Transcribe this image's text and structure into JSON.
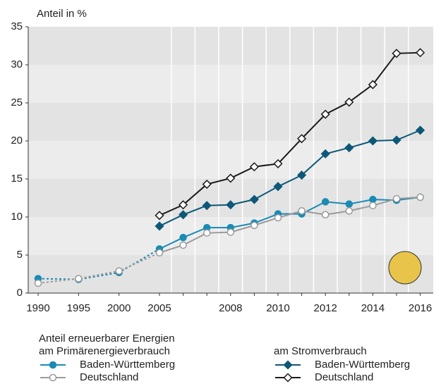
{
  "chart_data": {
    "type": "line",
    "ylabel": "Anteil in %",
    "categories": [
      "1990",
      "1995",
      "2000",
      "2005",
      null,
      null,
      "2008",
      null,
      "2010",
      null,
      "2012",
      null,
      "2014",
      null,
      "2016"
    ],
    "ylim": [
      0,
      35
    ],
    "yticks": [
      0,
      5,
      10,
      15,
      20,
      25,
      30,
      35
    ],
    "legend": {
      "heading": "Anteil erneuerbarer Energien",
      "groups": [
        "am Primärenergieverbrauch",
        "am Stromverbrauch"
      ]
    },
    "series": [
      {
        "name": "Baden-Württemberg",
        "group": 0,
        "color": "#1a8bb4",
        "marker": "circle",
        "filled": true,
        "dashed_until": "2005",
        "values": [
          1.9,
          1.8,
          2.7,
          5.8,
          7.3,
          8.6,
          8.6,
          9.2,
          10.4,
          10.4,
          12.0,
          11.7,
          12.3,
          12.2,
          12.6
        ]
      },
      {
        "name": "Deutschland",
        "group": 0,
        "color": "#9a9a9a",
        "marker": "circle",
        "filled": false,
        "dashed_until": "2005",
        "values": [
          1.3,
          1.9,
          2.9,
          5.3,
          6.3,
          7.9,
          8.0,
          8.9,
          9.9,
          10.8,
          10.3,
          10.8,
          11.5,
          12.4,
          12.6
        ]
      },
      {
        "name": "Baden-Württemberg",
        "group": 1,
        "color": "#0d5878",
        "marker": "diamond",
        "filled": true,
        "values": [
          null,
          null,
          null,
          8.8,
          10.3,
          11.5,
          11.6,
          12.3,
          14.0,
          15.5,
          18.3,
          19.1,
          20.0,
          20.1,
          21.4
        ]
      },
      {
        "name": "Deutschland",
        "group": 1,
        "color": "#1a1a1a",
        "marker": "diamond",
        "filled": false,
        "values": [
          null,
          null,
          null,
          10.2,
          11.6,
          14.3,
          15.1,
          16.6,
          17.0,
          20.3,
          23.5,
          25.1,
          27.4,
          31.5,
          31.6
        ]
      }
    ]
  }
}
